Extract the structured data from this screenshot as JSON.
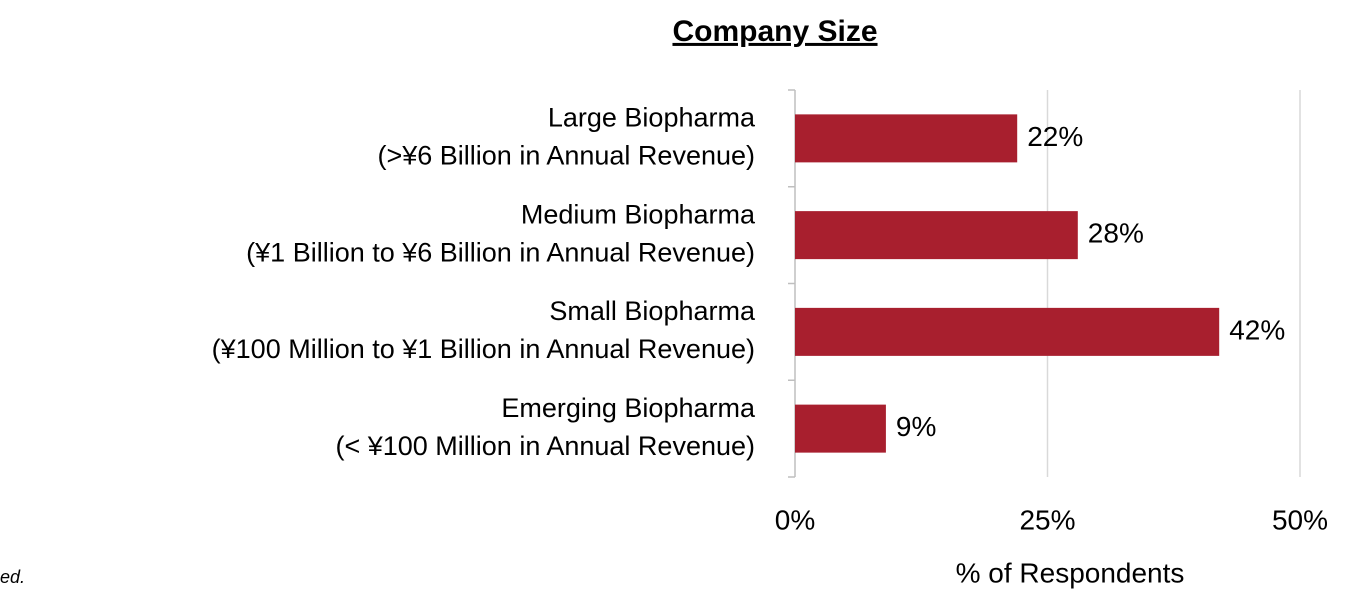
{
  "chart_data": {
    "type": "bar",
    "orientation": "horizontal",
    "title": "Company Size",
    "categories": [
      [
        "Large Biopharma",
        "(>¥6 Billion in Annual Revenue)"
      ],
      [
        "Medium Biopharma",
        "(¥1 Billion to ¥6 Billion in Annual Revenue)"
      ],
      [
        "Small Biopharma",
        "(¥100 Million to ¥1 Billion in Annual Revenue)"
      ],
      [
        "Emerging Biopharma",
        "(< ¥100 Million in Annual Revenue)"
      ]
    ],
    "values": [
      22,
      28,
      42,
      9
    ],
    "value_labels": [
      "22%",
      "28%",
      "42%",
      "9%"
    ],
    "color": "#a81f2e",
    "xlim": [
      0,
      50
    ],
    "xticks": [
      {
        "value": 0,
        "label": "0%"
      },
      {
        "value": 25,
        "label": "25%"
      },
      {
        "value": 50,
        "label": "50%"
      }
    ],
    "xlabel": "% of Respondents",
    "grid": true,
    "footnote": "ed."
  }
}
